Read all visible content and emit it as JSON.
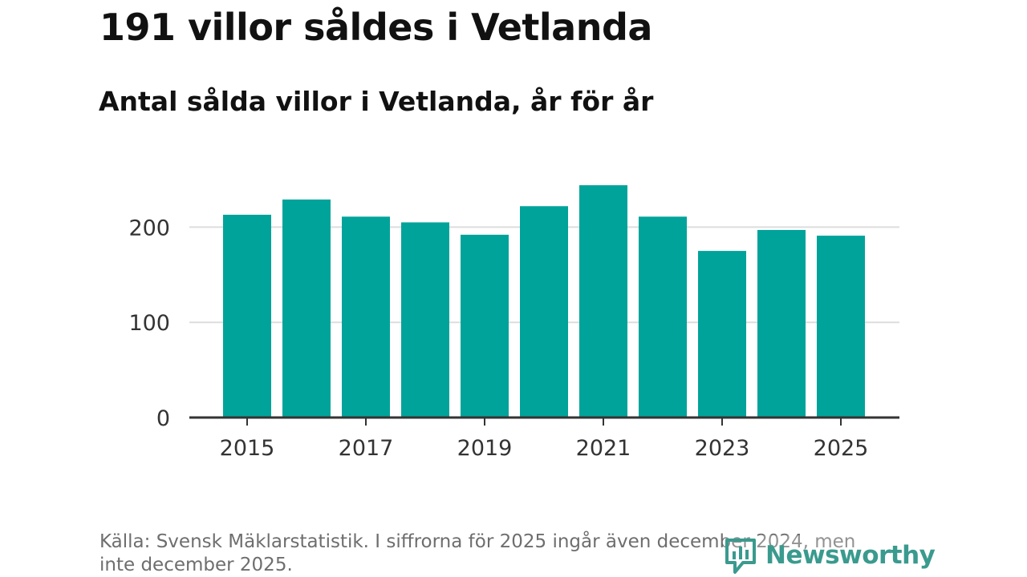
{
  "title": "191 villor såldes i Vetlanda",
  "subtitle": "Antal sålda villor i Vetlanda, år för år",
  "source": "Källa: Svensk Mäklarstatistik. I siffrorna för 2025 ingår även december 2024, men inte december 2025.",
  "brand": "Newsworthy",
  "colors": {
    "bar": "#00a39a",
    "grid": "#dddddd",
    "axis": "#333333",
    "brand": "#3a9a8e"
  },
  "chart_data": {
    "type": "bar",
    "categories": [
      "2015",
      "2016",
      "2017",
      "2018",
      "2019",
      "2020",
      "2021",
      "2022",
      "2023",
      "2024",
      "2025"
    ],
    "values": [
      213,
      229,
      211,
      205,
      192,
      222,
      244,
      211,
      175,
      197,
      191
    ],
    "x_tick_labels": [
      "2015",
      "2017",
      "2019",
      "2021",
      "2023",
      "2025"
    ],
    "y_ticks": [
      0,
      100,
      200
    ],
    "ylim": [
      0,
      250
    ],
    "title": "191 villor såldes i Vetlanda",
    "xlabel": "",
    "ylabel": "",
    "grid": true
  }
}
